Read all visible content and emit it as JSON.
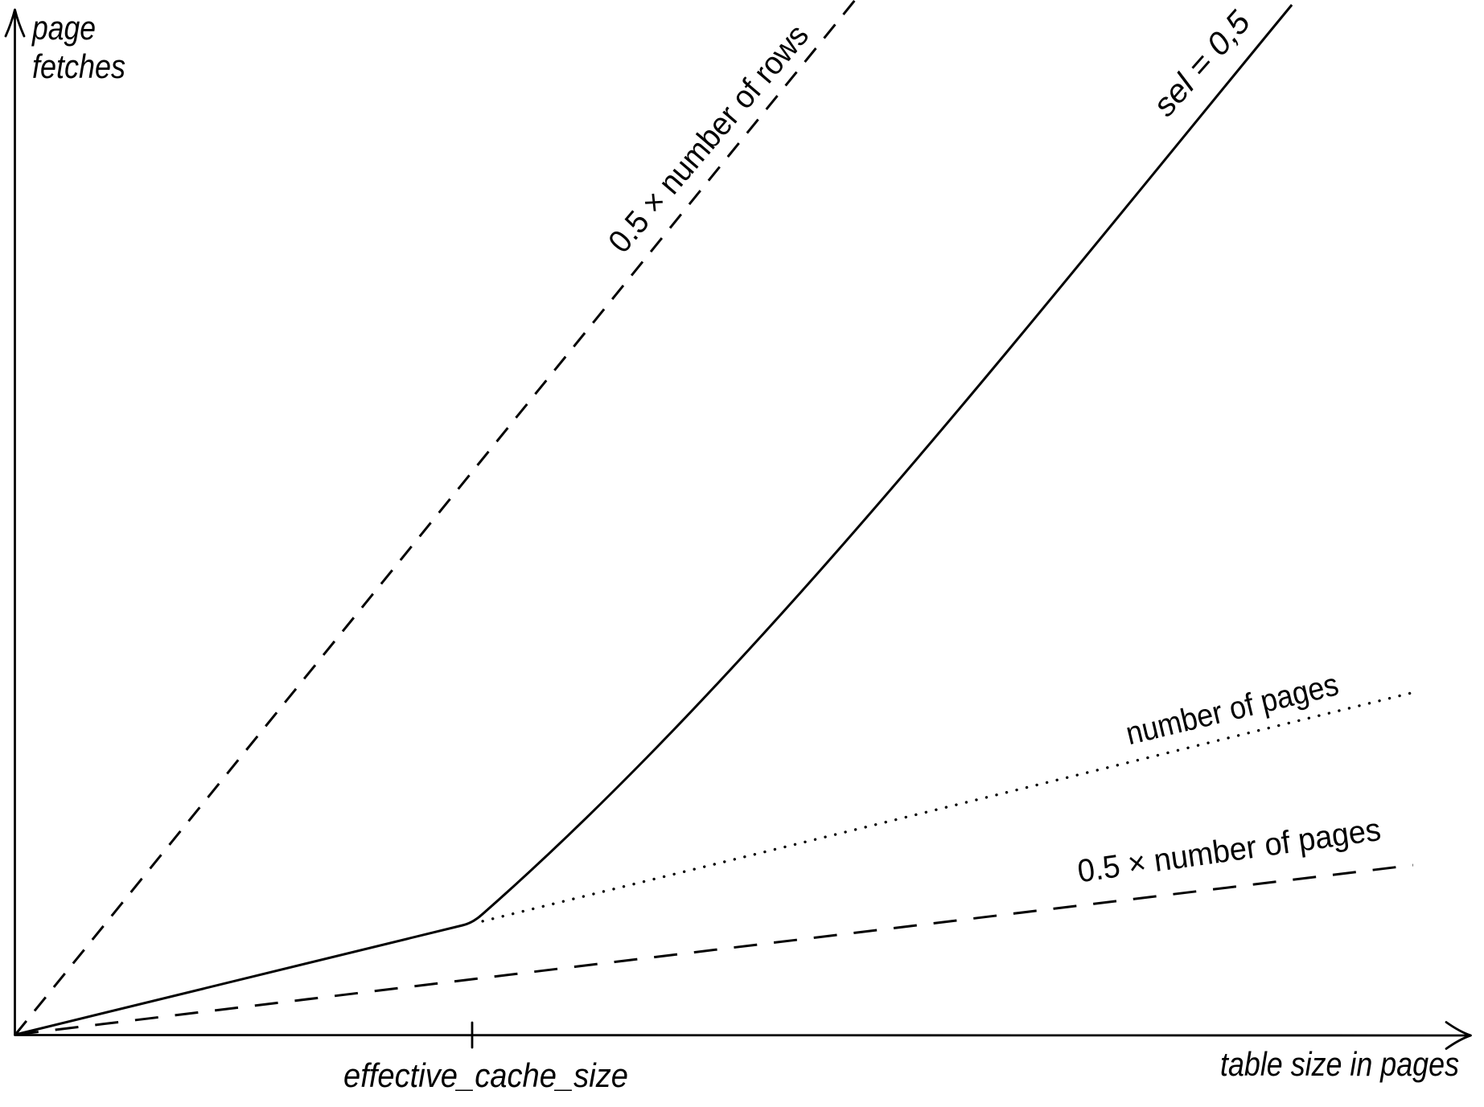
{
  "figure": {
    "background": "#ffffff",
    "ink": "#000000"
  },
  "y_axis": {
    "label_line1": "page",
    "label_line2": "fetches"
  },
  "x_axis": {
    "label": "table size in pages",
    "tick_label": "effective_cache_size"
  },
  "line_labels": {
    "half_rows": "0.5 × number of rows",
    "sel": "sel = 0,5",
    "pages": "number of pages",
    "half_pages": "0.5 × number of pages"
  },
  "chart_data": {
    "type": "line",
    "xlabel": "table size in pages",
    "ylabel": "page fetches",
    "axes_numeric": false,
    "grid": false,
    "legend": "labels drawn along lines",
    "x_tick": {
      "label": "effective_cache_size",
      "x_frac": 0.314
    },
    "series": [
      {
        "name": "0.5 × number of rows",
        "style": "dashed",
        "path": [
          [
            "M",
            0,
            0
          ],
          [
            "L",
            0.5775,
            1.0
          ]
        ]
      },
      {
        "name": "sel = 0,5",
        "style": "solid",
        "path": [
          [
            "M",
            0,
            0
          ],
          [
            "L",
            0.3075,
            0.1057
          ],
          [
            "Q",
            0.3147,
            0.108,
            0.3214,
            0.1166
          ],
          [
            "C",
            0.5094,
            0.3489,
            0.6974,
            0.6876,
            0.8778,
            0.9953
          ]
        ]
      },
      {
        "name": "number of pages",
        "style": "dotted",
        "path": [
          [
            "M",
            0.3214,
            0.1096
          ],
          [
            "L",
            0.9601,
            0.3303
          ]
        ]
      },
      {
        "name": "0.5 × number of pages",
        "style": "long-dashed",
        "path": [
          [
            "M",
            0,
            0
          ],
          [
            "L",
            0.9612,
            0.1639
          ]
        ]
      }
    ]
  }
}
